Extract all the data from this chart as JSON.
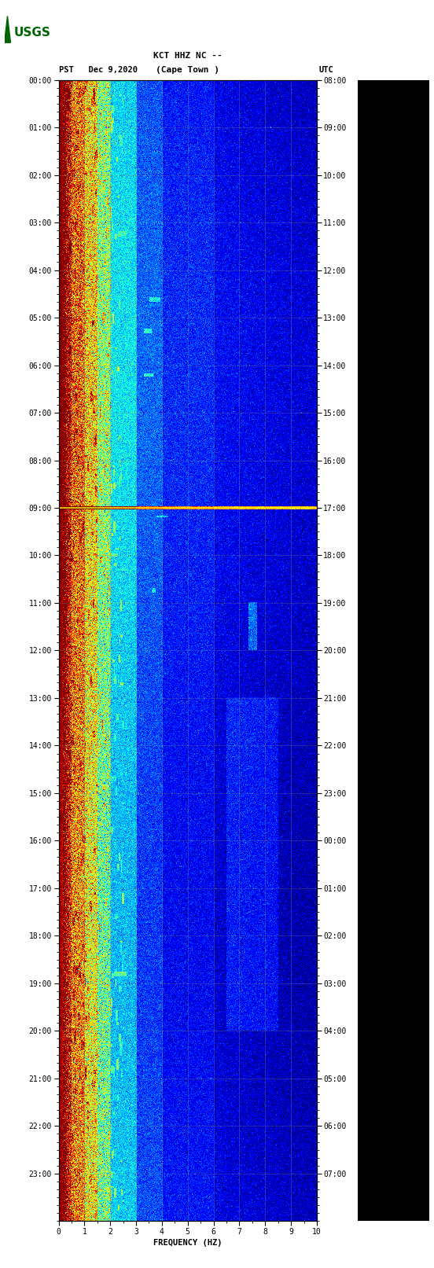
{
  "title_line1": "KCT HHZ NC --",
  "title_line2": "(Cape Town )",
  "left_label": "PST   Dec 9,2020",
  "right_label": "UTC",
  "xlabel": "FREQUENCY (HZ)",
  "freq_min": 0,
  "freq_max": 10,
  "pst_ticks": [
    "00:00",
    "01:00",
    "02:00",
    "03:00",
    "04:00",
    "05:00",
    "06:00",
    "07:00",
    "08:00",
    "09:00",
    "10:00",
    "11:00",
    "12:00",
    "13:00",
    "14:00",
    "15:00",
    "16:00",
    "17:00",
    "18:00",
    "19:00",
    "20:00",
    "21:00",
    "22:00",
    "23:00"
  ],
  "utc_ticks": [
    "08:00",
    "09:00",
    "10:00",
    "11:00",
    "12:00",
    "13:00",
    "14:00",
    "15:00",
    "16:00",
    "17:00",
    "18:00",
    "19:00",
    "20:00",
    "21:00",
    "22:00",
    "23:00",
    "00:00",
    "01:00",
    "02:00",
    "03:00",
    "04:00",
    "05:00",
    "06:00",
    "07:00"
  ],
  "colormap": "jet",
  "usgs_green": "#006400",
  "bg_color": "#ffffff",
  "right_panel_color": "#000000",
  "grid_color": "#808080",
  "grid_alpha": 0.5,
  "noise_line_color": "#ffff00",
  "noise_line_time": 9.0,
  "fig_width": 5.52,
  "fig_height": 16.13,
  "dpi": 100
}
